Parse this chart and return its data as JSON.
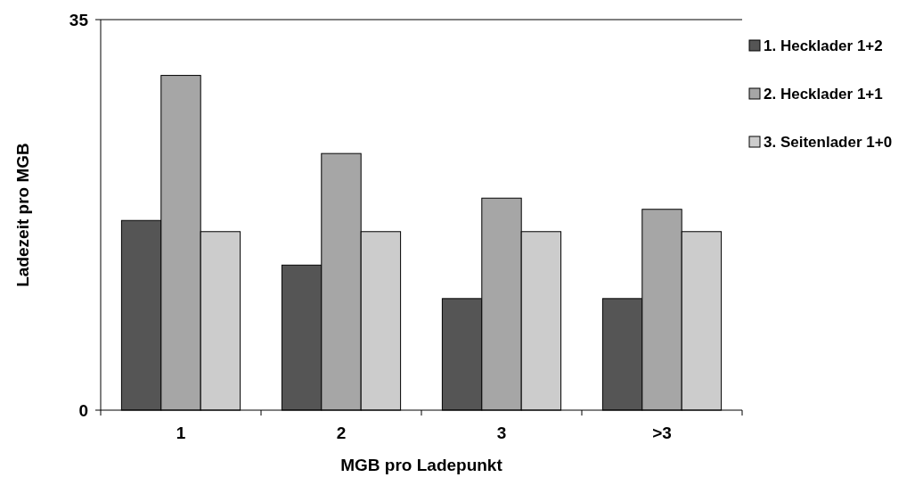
{
  "chart_data": {
    "type": "bar",
    "xlabel": "MGB pro Ladepunkt",
    "ylabel": "Ladezeit pro MGB",
    "categories": [
      "1",
      "2",
      "3",
      ">3"
    ],
    "series": [
      {
        "name": "1. Hecklader 1+2",
        "color": "#555555",
        "values": [
          17,
          13,
          10,
          10
        ]
      },
      {
        "name": "2. Hecklader 1+1",
        "color": "#a6a6a6",
        "values": [
          30,
          23,
          19,
          18
        ]
      },
      {
        "name": "3. Seitenlader 1+0",
        "color": "#cccccc",
        "values": [
          16,
          16,
          16,
          16
        ]
      }
    ],
    "ylim": [
      0,
      35
    ],
    "yticks": [
      0,
      35
    ],
    "ref_lines": [
      {
        "axis": "y",
        "value": 35
      }
    ],
    "legend": "right"
  }
}
